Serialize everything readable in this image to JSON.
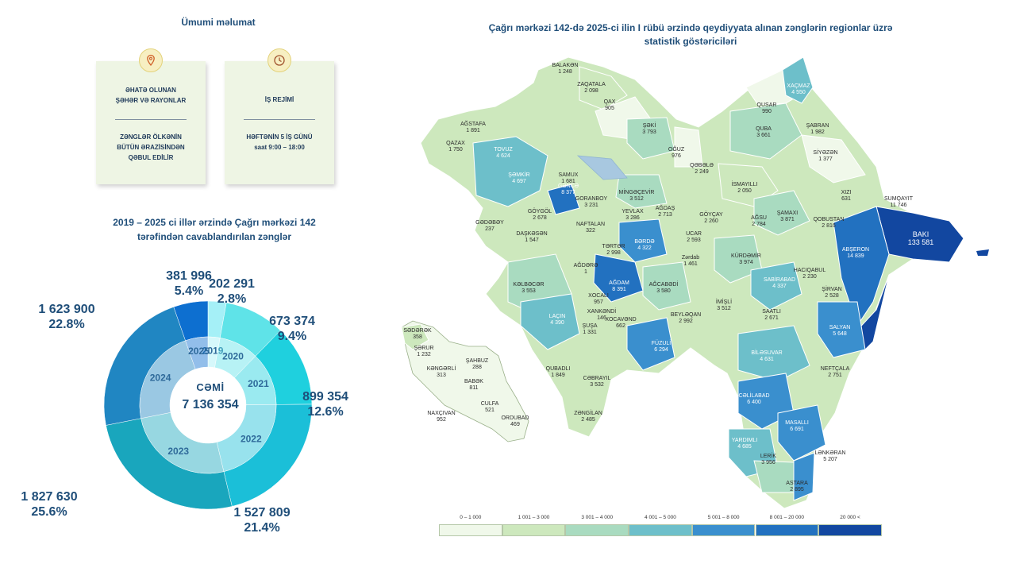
{
  "general": {
    "title": "Ümumi məlumat",
    "card1": {
      "icon": "map-pin-icon",
      "line1": "ƏHATƏ OLUNAN",
      "line2": "ŞƏHƏR VƏ RAYONLAR",
      "line3": "ZƏNGLƏR ÖLKƏNİN",
      "line4": "BÜTÜN ƏRAZİSİNDƏN",
      "line5": "QƏBUL EDİLİR"
    },
    "card2": {
      "icon": "clock-icon",
      "line1": "İŞ REJİMİ",
      "line2": "HƏFTƏNİN 5 İŞ GÜNÜ",
      "line3": "saat 9:00 – 18:00"
    }
  },
  "donut": {
    "title_line1": "2019 – 2025 ci illər ərzində Çağrı mərkəzi 142",
    "title_line2": "tərəfindən cavablandırılan  zənglər",
    "center_label": "CƏMİ",
    "center_value": "7 136 354"
  },
  "chart_data": {
    "type": "pie",
    "total": 7136354,
    "categories": [
      "2019",
      "2020",
      "2021",
      "2022",
      "2023",
      "2024",
      "2025"
    ],
    "values": [
      202291,
      673374,
      899354,
      1527809,
      1827630,
      1623900,
      381996
    ],
    "value_labels": [
      "202 291",
      "673 374",
      "899 354",
      "1 527 809",
      "1 827 630",
      "1 623 900",
      "381 996"
    ],
    "percent_labels": [
      "2.8%",
      "9.4%",
      "12.6%",
      "21.4%",
      "25.6%",
      "22.8%",
      "5.4%"
    ],
    "colors": [
      "#a5f0f7",
      "#5fe3e8",
      "#1fd0de",
      "#1bbfd8",
      "#19a6bd",
      "#2086c2",
      "#0d6fd0"
    ]
  },
  "map": {
    "title_line1": "Çağrı mərkəzi 142-də 2025-ci ilin I rübü ərzində qeydiyyata alınan zənglərin regionlar üzrə",
    "title_line2": "statistik göstəriciləri",
    "regions": [
      {
        "name": "BALAKƏN",
        "value": "1 248"
      },
      {
        "name": "ZAQATALA",
        "value": "2 098"
      },
      {
        "name": "QAX",
        "value": "905"
      },
      {
        "name": "ŞƏKİ",
        "value": "3 793"
      },
      {
        "name": "OĞUZ",
        "value": "976"
      },
      {
        "name": "QƏBƏLƏ",
        "value": "2 249"
      },
      {
        "name": "QUSAR",
        "value": "990"
      },
      {
        "name": "XAÇMAZ",
        "value": "4 550"
      },
      {
        "name": "QUBA",
        "value": "3 661"
      },
      {
        "name": "ŞABRAN",
        "value": "1 982"
      },
      {
        "name": "SİYƏZƏN",
        "value": "1 377"
      },
      {
        "name": "XIZI",
        "value": "631"
      },
      {
        "name": "SUMQAYIT",
        "value": "11 746"
      },
      {
        "name": "BAKI",
        "value": "133 581"
      },
      {
        "name": "ABŞERON",
        "value": "14 839"
      },
      {
        "name": "AĞSTAFA",
        "value": "1 891"
      },
      {
        "name": "QAZAX",
        "value": "1 750"
      },
      {
        "name": "TOVUZ",
        "value": "4 624"
      },
      {
        "name": "ŞƏMKİR",
        "value": "4 697"
      },
      {
        "name": "SAMUX",
        "value": "1 681"
      },
      {
        "name": "GƏNCƏ",
        "value": "8 377"
      },
      {
        "name": "GORANBOY",
        "value": "3 231"
      },
      {
        "name": "MİNGƏÇEVİR",
        "value": "3 512"
      },
      {
        "name": "YEVLAX",
        "value": "3 286"
      },
      {
        "name": "AĞDAŞ",
        "value": "2 713"
      },
      {
        "name": "İSMAYILLI",
        "value": "2 050"
      },
      {
        "name": "GÖYÇAY",
        "value": "2 260"
      },
      {
        "name": "AĞSU",
        "value": "2 784"
      },
      {
        "name": "ŞAMAXI",
        "value": "3 871"
      },
      {
        "name": "QOBUSTAN",
        "value": "2 816"
      },
      {
        "name": "GƏDƏBƏY",
        "value": "237"
      },
      {
        "name": "DAŞKƏSƏN",
        "value": "1 547"
      },
      {
        "name": "GÖYGÖL",
        "value": "2 678"
      },
      {
        "name": "NAFTALAN",
        "value": "322"
      },
      {
        "name": "TƏRTƏR",
        "value": "2 998"
      },
      {
        "name": "BƏRDƏ",
        "value": "4 322"
      },
      {
        "name": "UCAR",
        "value": "2 593"
      },
      {
        "name": "Zərdab",
        "value": "1 461"
      },
      {
        "name": "KÜRDƏMİR",
        "value": "3 974"
      },
      {
        "name": "HACIQABUL",
        "value": "2 230"
      },
      {
        "name": "AĞDƏRƏ",
        "value": "1"
      },
      {
        "name": "KƏLBƏCƏR",
        "value": "3 553"
      },
      {
        "name": "AĞDAM",
        "value": "8 391"
      },
      {
        "name": "AĞCABƏDİ",
        "value": "3 580"
      },
      {
        "name": "XOCALI",
        "value": "957"
      },
      {
        "name": "XANKƏNDİ",
        "value": "146"
      },
      {
        "name": "ŞUŞA",
        "value": "1 331"
      },
      {
        "name": "XOCAVƏND",
        "value": "662"
      },
      {
        "name": "LAÇIN",
        "value": "4 390"
      },
      {
        "name": "BEYLƏQAN",
        "value": "2 992"
      },
      {
        "name": "İMİŞLİ",
        "value": "3 512"
      },
      {
        "name": "SABİRABAD",
        "value": "4 337"
      },
      {
        "name": "SAATLI",
        "value": "2 671"
      },
      {
        "name": "ŞİRVAN",
        "value": "2 528"
      },
      {
        "name": "SALYAN",
        "value": "5 648"
      },
      {
        "name": "FÜZULİ",
        "value": "6 294"
      },
      {
        "name": "BİLƏSUVAR",
        "value": "4 631"
      },
      {
        "name": "NEFTÇALA",
        "value": "2 751"
      },
      {
        "name": "QUBADLI",
        "value": "1 849"
      },
      {
        "name": "CƏBRAYIL",
        "value": "3 532"
      },
      {
        "name": "ZƏNGİLAN",
        "value": "2 485"
      },
      {
        "name": "CƏLİLABAD",
        "value": "6 400"
      },
      {
        "name": "MASALLI",
        "value": "6 691"
      },
      {
        "name": "YARDIMLI",
        "value": "4 685"
      },
      {
        "name": "LERİK",
        "value": "3 956"
      },
      {
        "name": "ASTARA",
        "value": "2 895"
      },
      {
        "name": "LƏNKƏRAN",
        "value": "5 207"
      },
      {
        "name": "SƏDƏRƏK",
        "value": "358"
      },
      {
        "name": "ŞƏRUR",
        "value": "1 232"
      },
      {
        "name": "KƏNGƏRLİ",
        "value": "313"
      },
      {
        "name": "ŞAHBUZ",
        "value": "288"
      },
      {
        "name": "BABƏK",
        "value": "811"
      },
      {
        "name": "CULFA",
        "value": "521"
      },
      {
        "name": "NAXÇIVAN",
        "value": "952"
      },
      {
        "name": "ORDUBAD",
        "value": "469"
      }
    ],
    "legend": [
      {
        "label": "0 – 1 000",
        "color": "#f0f8ea"
      },
      {
        "label": "1 001 – 3 000",
        "color": "#cde8bd"
      },
      {
        "label": "3 001 – 4 000",
        "color": "#a9dbc0"
      },
      {
        "label": "4 001 – 5 000",
        "color": "#6dbfca"
      },
      {
        "label": "5 001 – 8 000",
        "color": "#3a8fce"
      },
      {
        "label": "8 001 – 20 000",
        "color": "#2271c0"
      },
      {
        "label": "20 000 <",
        "color": "#1247a0"
      }
    ]
  }
}
